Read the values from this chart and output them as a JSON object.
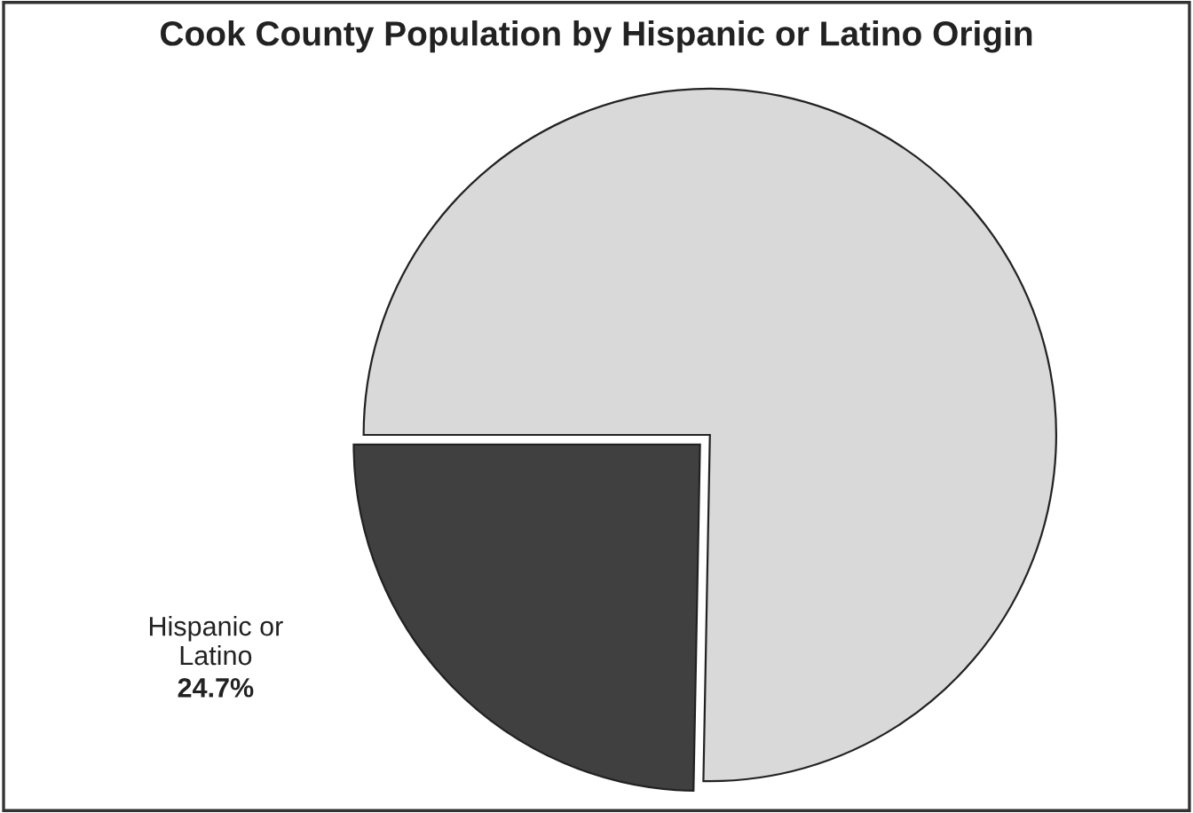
{
  "chart_data": {
    "type": "pie",
    "title": "Cook County Population by Hispanic or Latino Origin",
    "categories": [
      "Hispanic or Latino",
      null
    ],
    "values": [
      24.7,
      75.3
    ],
    "value_labels": [
      "24.7%",
      null
    ],
    "colors": [
      "#404040",
      "#d9d9d9"
    ],
    "legend": false
  }
}
